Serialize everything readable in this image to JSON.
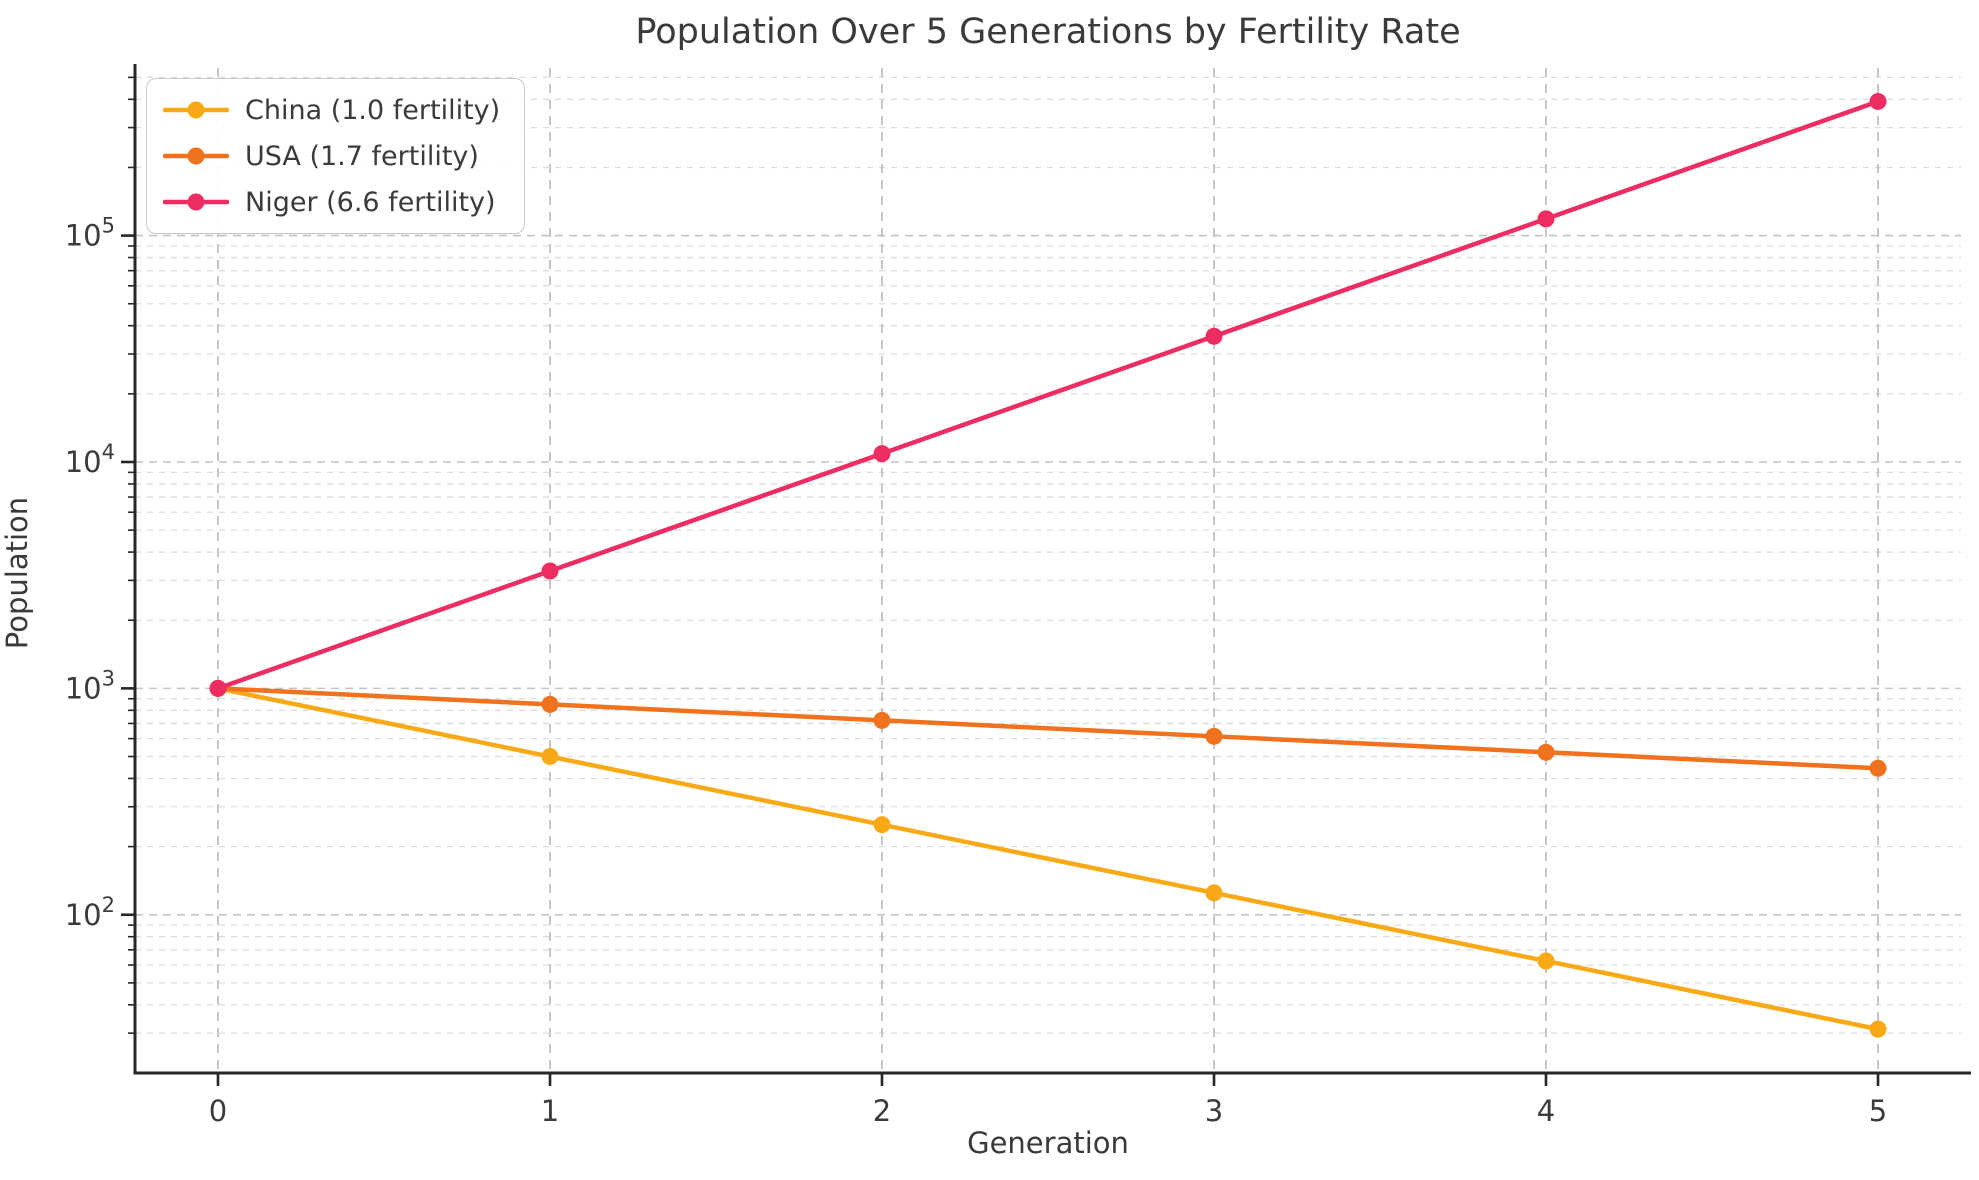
{
  "chart_data": {
    "type": "line",
    "title": "Population Over 5 Generations by Fertility Rate",
    "xlabel": "Generation",
    "ylabel": "Population",
    "x": [
      0,
      1,
      2,
      3,
      4,
      5
    ],
    "series": [
      {
        "name": "China (1.0 fertility)",
        "color": "#FAA916",
        "values": [
          1000,
          500,
          250,
          125,
          62.5,
          31.25
        ]
      },
      {
        "name": "USA (1.7 fertility)",
        "color": "#F0711E",
        "values": [
          1000,
          850,
          722.5,
          614.13,
          522.01,
          443.71
        ]
      },
      {
        "name": "Niger (6.6 fertility)",
        "color": "#ED2D61",
        "values": [
          1000,
          3300,
          10890,
          35937,
          118592,
          391354
        ]
      }
    ],
    "x_tick_labels": [
      "0",
      "1",
      "2",
      "3",
      "4",
      "5"
    ],
    "y_scale": "log",
    "y_tick_exponents": [
      2,
      3,
      4,
      5
    ],
    "y_tick_base": "10",
    "xlim": [
      -0.25,
      5.25
    ],
    "ylim": [
      20,
      550000
    ],
    "grid": "dashed, major and minor",
    "legend_position": "upper left",
    "styles": {
      "spine_color": "#262626",
      "tick_label_color": "#3b3b3b",
      "grid_major_color": "#c3c3c3",
      "grid_minor_color": "#dcdcdc",
      "grid_vertical_color": "#b8b8b8",
      "line_width": 4.5,
      "marker_radius": 8.5
    }
  }
}
